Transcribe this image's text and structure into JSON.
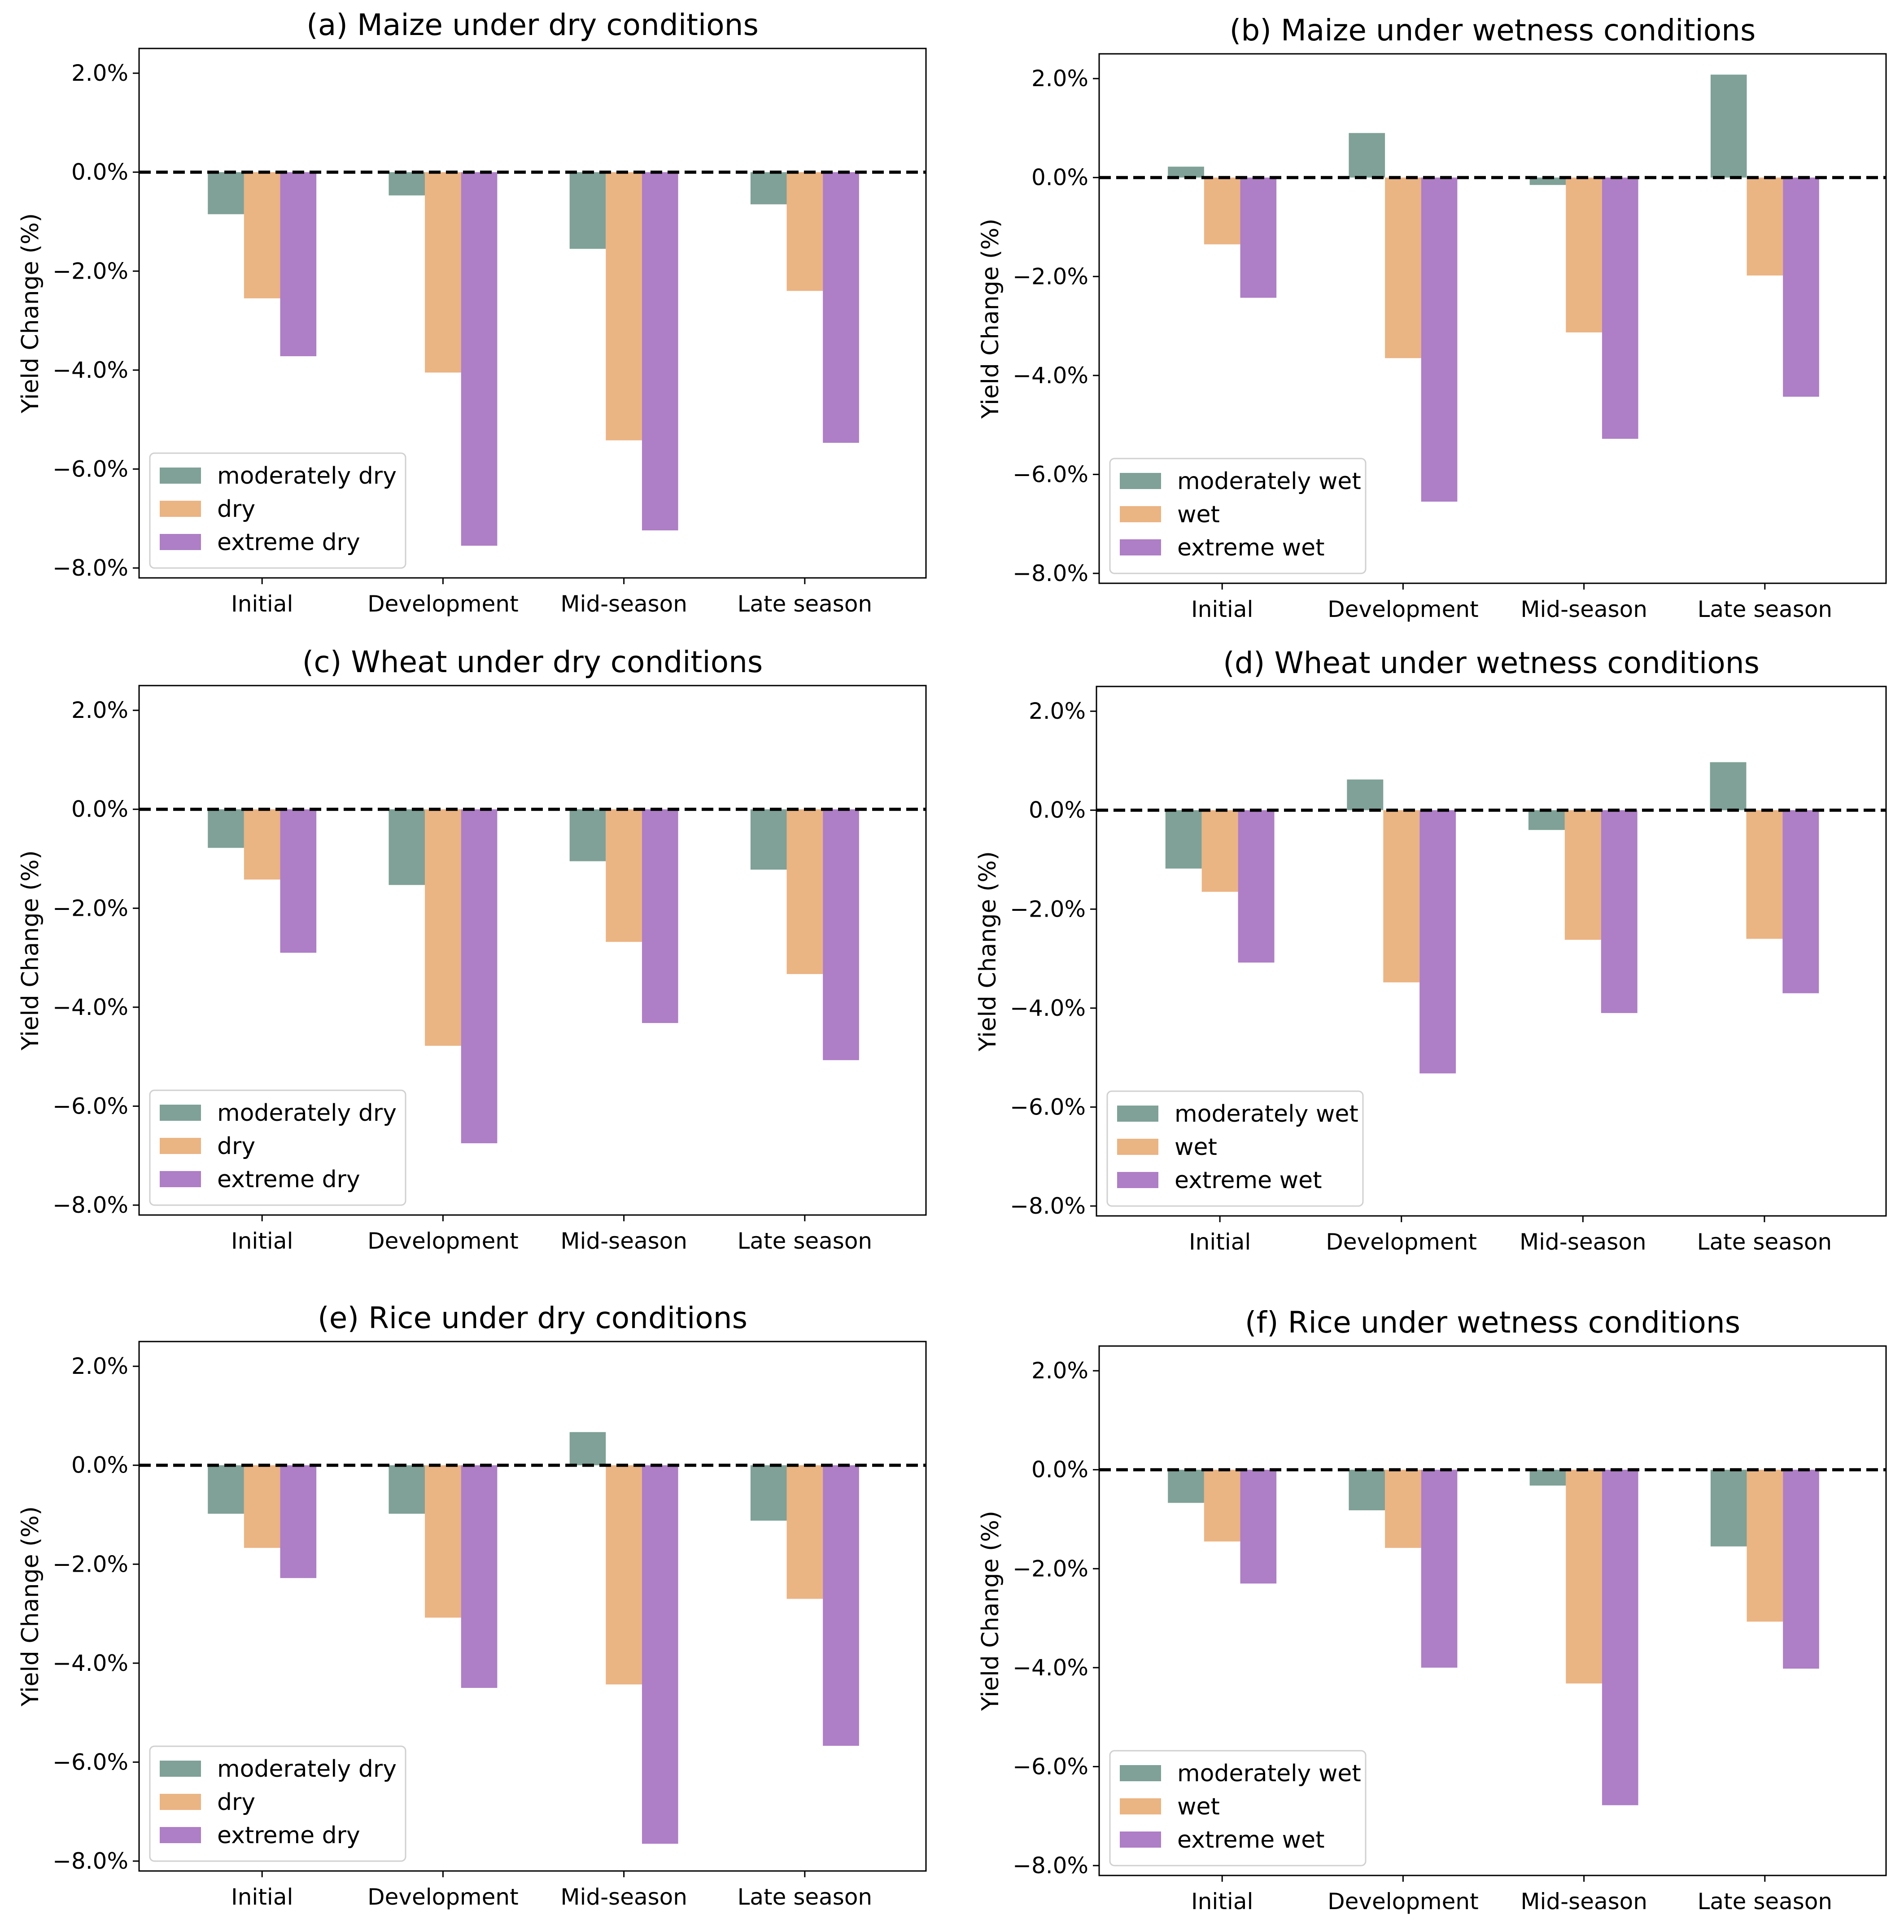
{
  "colors": {
    "moderately": "#7fa197",
    "middle": "#ebb483",
    "extreme": "#ae7ec6"
  },
  "chart_data": [
    {
      "type": "bar",
      "title": "(a) Maize under dry conditions",
      "ylabel": "Yield Change (%)",
      "xlabel": "",
      "categories": [
        "Initial",
        "Development",
        "Mid-season",
        "Late season"
      ],
      "ylim": [
        -8.2,
        2.5
      ],
      "yticks": [
        "2.0%",
        "0.0%",
        "−2.0%",
        "−4.0%",
        "−6.0%",
        "−8.0%"
      ],
      "ytick_values": [
        2,
        0,
        -2,
        -4,
        -6,
        -8
      ],
      "legend_position": "lower-left",
      "series": [
        {
          "name": "moderately dry",
          "values": [
            -0.85,
            -0.47,
            -1.55,
            -0.65
          ]
        },
        {
          "name": "dry",
          "values": [
            -2.55,
            -4.05,
            -5.42,
            -2.4
          ]
        },
        {
          "name": "extreme dry",
          "values": [
            -3.72,
            -7.55,
            -7.24,
            -5.47
          ]
        }
      ]
    },
    {
      "type": "bar",
      "title": "(b)  Maize under wetness conditions",
      "ylabel": "Yield Change (%)",
      "xlabel": "",
      "categories": [
        "Initial",
        "Development",
        "Mid-season",
        "Late season"
      ],
      "ylim": [
        -8.2,
        2.5
      ],
      "yticks": [
        "2.0%",
        "0.0%",
        "−2.0%",
        "−4.0%",
        "−6.0%",
        "−8.0%"
      ],
      "ytick_values": [
        2,
        0,
        -2,
        -4,
        -6,
        -8
      ],
      "legend_position": "lower-left",
      "series": [
        {
          "name": "moderately wet",
          "values": [
            0.22,
            0.9,
            -0.15,
            2.08
          ]
        },
        {
          "name": "wet",
          "values": [
            -1.35,
            -3.65,
            -3.13,
            -1.98
          ]
        },
        {
          "name": "extreme wet",
          "values": [
            -2.43,
            -6.55,
            -5.28,
            -4.43
          ]
        }
      ]
    },
    {
      "type": "bar",
      "title": "(c)  Wheat under dry conditions",
      "ylabel": "Yield Change (%)",
      "xlabel": "",
      "categories": [
        "Initial",
        "Development",
        "Mid-season",
        "Late season"
      ],
      "ylim": [
        -8.2,
        2.5
      ],
      "yticks": [
        "2.0%",
        "0.0%",
        "−2.0%",
        "−4.0%",
        "−6.0%",
        "−8.0%"
      ],
      "ytick_values": [
        2,
        0,
        -2,
        -4,
        -6,
        -8
      ],
      "legend_position": "lower-left",
      "series": [
        {
          "name": "moderately dry",
          "values": [
            -0.78,
            -1.53,
            -1.05,
            -1.22
          ]
        },
        {
          "name": "dry",
          "values": [
            -1.42,
            -4.78,
            -2.68,
            -3.33
          ]
        },
        {
          "name": "extreme dry",
          "values": [
            -2.9,
            -6.75,
            -4.32,
            -5.07
          ]
        }
      ]
    },
    {
      "type": "bar",
      "title": "(d)  Wheat under wetness conditions",
      "ylabel": "Yield Change (%)",
      "xlabel": "",
      "categories": [
        "Initial",
        "Development",
        "Mid-season",
        "Late season"
      ],
      "ylim": [
        -8.2,
        2.5
      ],
      "yticks": [
        "2.0%",
        "0.0%",
        "−2.0%",
        "−4.0%",
        "−6.0%",
        "−8.0%"
      ],
      "ytick_values": [
        2,
        0,
        -2,
        -4,
        -6,
        -8
      ],
      "legend_position": "lower-left",
      "series": [
        {
          "name": "moderately wet",
          "values": [
            -1.18,
            0.62,
            -0.4,
            0.97
          ]
        },
        {
          "name": "wet",
          "values": [
            -1.65,
            -3.48,
            -2.62,
            -2.6
          ]
        },
        {
          "name": "extreme wet",
          "values": [
            -3.08,
            -5.32,
            -4.1,
            -3.7
          ]
        }
      ]
    },
    {
      "type": "bar",
      "title": "(e)  Rice under dry conditions",
      "ylabel": "Yield Change (%)",
      "xlabel": "",
      "categories": [
        "Initial",
        "Development",
        "Mid-season",
        "Late season"
      ],
      "ylim": [
        -8.2,
        2.5
      ],
      "yticks": [
        "2.0%",
        "0.0%",
        "−2.0%",
        "−4.0%",
        "−6.0%",
        "−8.0%"
      ],
      "ytick_values": [
        2,
        0,
        -2,
        -4,
        -6,
        -8
      ],
      "legend_position": "lower-left",
      "series": [
        {
          "name": "moderately dry",
          "values": [
            -0.98,
            -0.98,
            0.67,
            -1.12
          ]
        },
        {
          "name": "dry",
          "values": [
            -1.67,
            -3.08,
            -4.43,
            -2.7
          ]
        },
        {
          "name": "extreme dry",
          "values": [
            -2.28,
            -4.5,
            -7.65,
            -5.67
          ]
        }
      ]
    },
    {
      "type": "bar",
      "title": "(f)  Rice under wetness conditions",
      "ylabel": "Yield Change (%)",
      "xlabel": "",
      "categories": [
        "Initial",
        "Development",
        "Mid-season",
        "Late season"
      ],
      "ylim": [
        -8.2,
        2.5
      ],
      "yticks": [
        "2.0%",
        "0.0%",
        "−2.0%",
        "−4.0%",
        "−6.0%",
        "−8.0%"
      ],
      "ytick_values": [
        2,
        0,
        -2,
        -4,
        -6,
        -8
      ],
      "legend_position": "lower-left",
      "series": [
        {
          "name": "moderately wet",
          "values": [
            -0.67,
            -0.82,
            -0.32,
            -1.55
          ]
        },
        {
          "name": "wet",
          "values": [
            -1.45,
            -1.58,
            -4.32,
            -3.07
          ]
        },
        {
          "name": "extreme wet",
          "values": [
            -2.3,
            -4.0,
            -6.78,
            -4.02
          ]
        }
      ]
    }
  ]
}
